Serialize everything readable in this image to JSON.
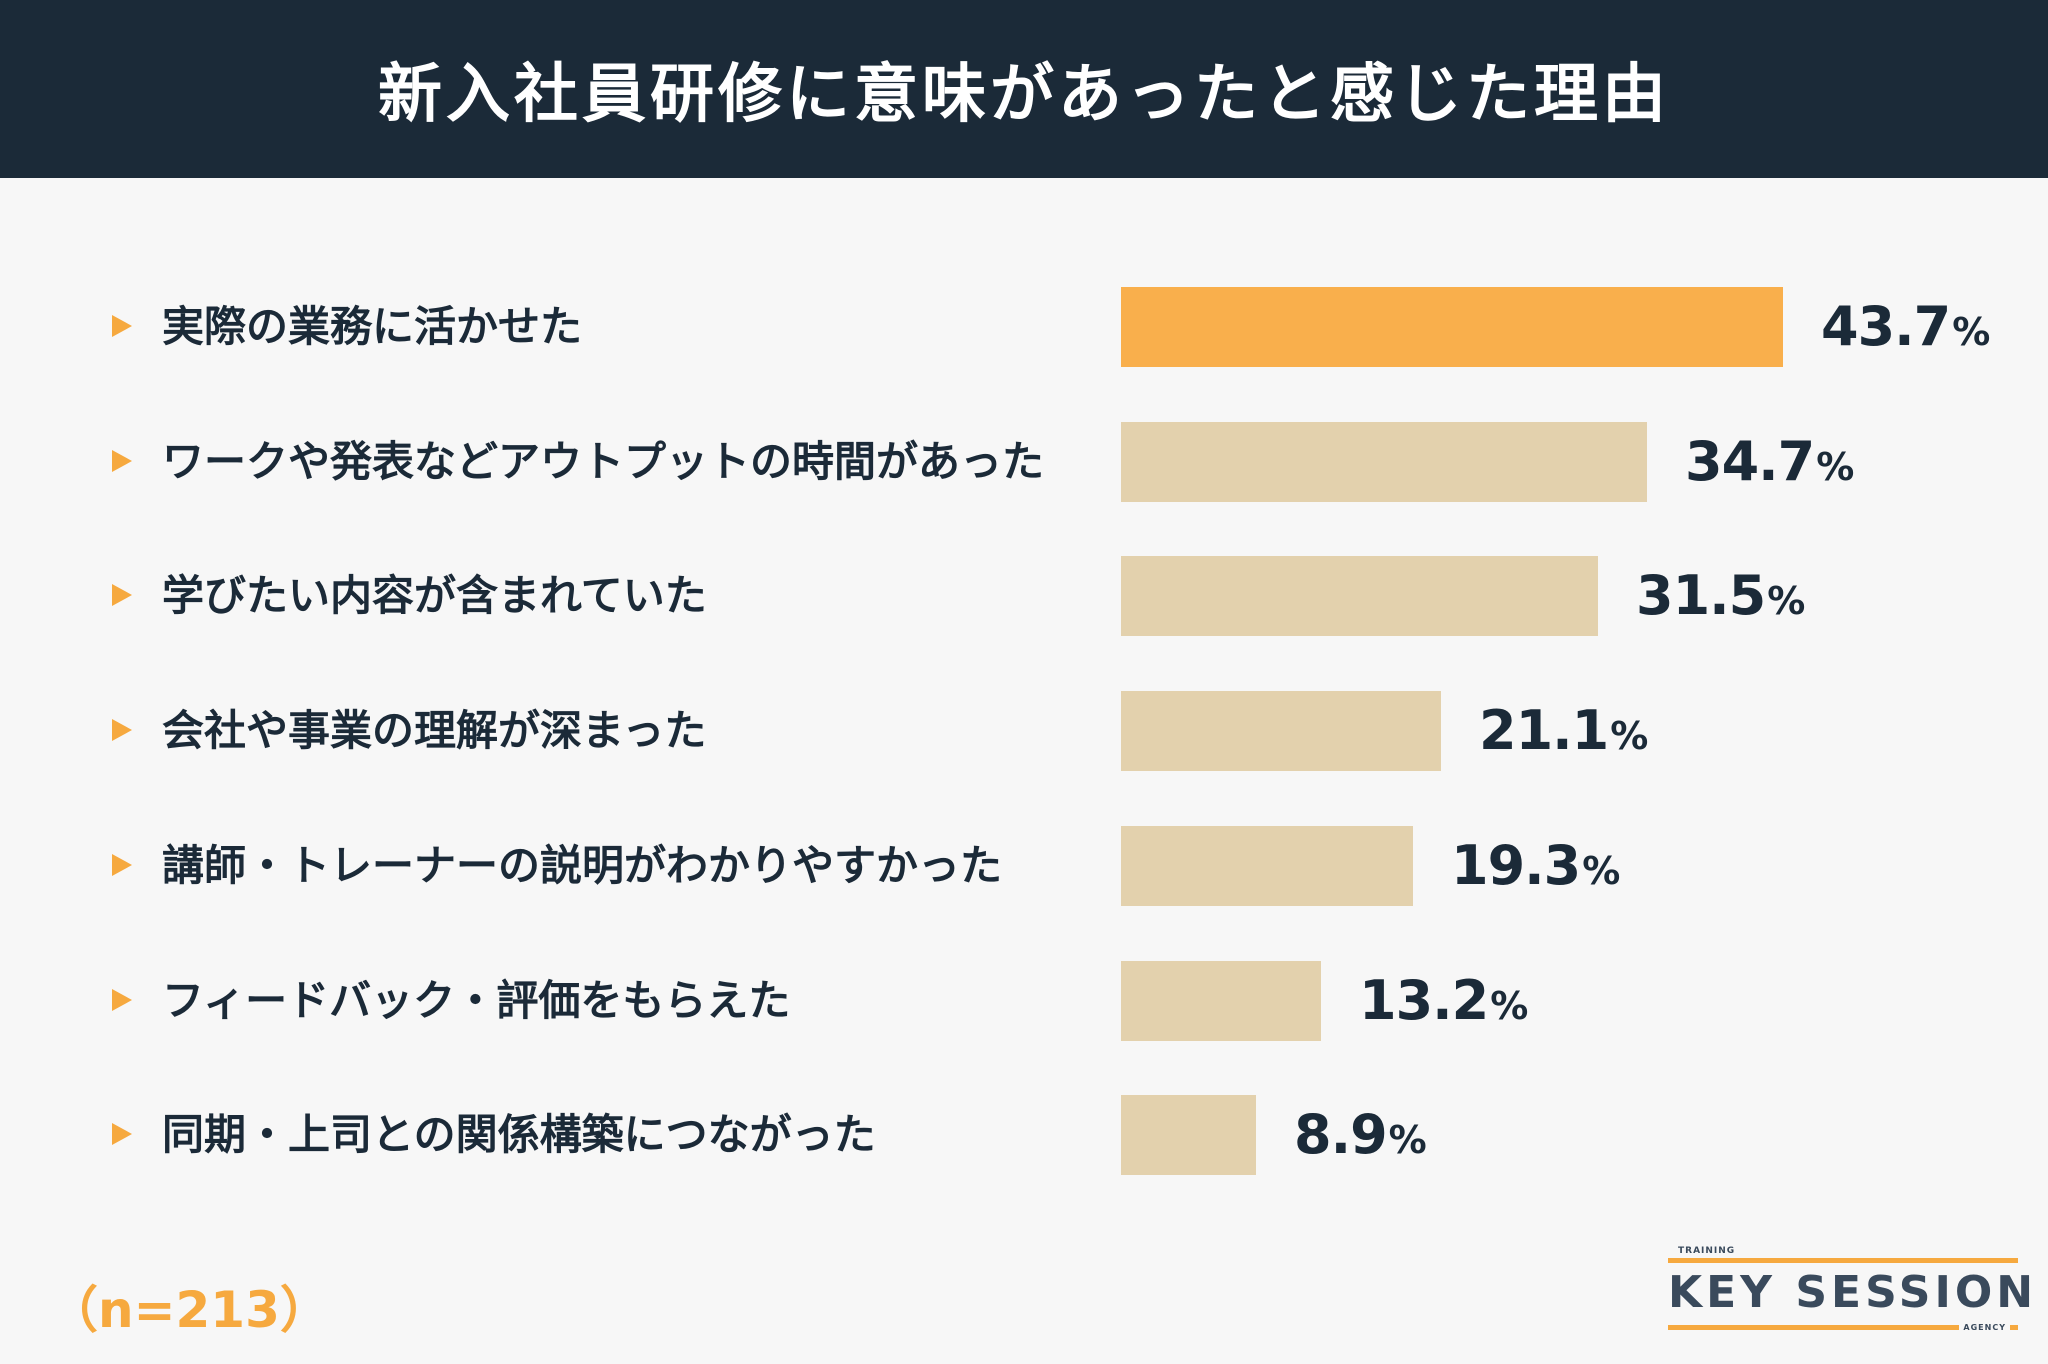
{
  "header": {
    "title": "新入社員研修に意味があったと感じた理由"
  },
  "chart_data": {
    "type": "bar",
    "orientation": "horizontal",
    "title": "新入社員研修に意味があったと感じた理由",
    "categories": [
      "実際の業務に活かせた",
      "ワークや発表などアウトプットの時間があった",
      "学びたい内容が含まれていた",
      "会社や事業の理解が深まった",
      "講師・トレーナーの説明がわかりやすかった",
      "フィードバック・評価をもらえた",
      "同期・上司との関係構築につながった"
    ],
    "values": [
      43.7,
      34.7,
      31.5,
      21.1,
      19.3,
      13.2,
      8.9
    ],
    "value_labels": [
      "43.7",
      "34.7",
      "31.5",
      "21.1",
      "19.3",
      "13.2",
      "8.9"
    ],
    "unit": "%",
    "highlight_index": 0,
    "colors": {
      "highlight": "#f9af4c",
      "bar": "#e3d1ad",
      "marker": "#f6a93f",
      "text": "#1b2a38"
    },
    "grid": false,
    "legend": "none"
  },
  "sample_size": "（n=213）",
  "logo": {
    "top_text": "TRAINING",
    "main_text": "KEY SESSION",
    "bottom_text": "AGENCY"
  }
}
